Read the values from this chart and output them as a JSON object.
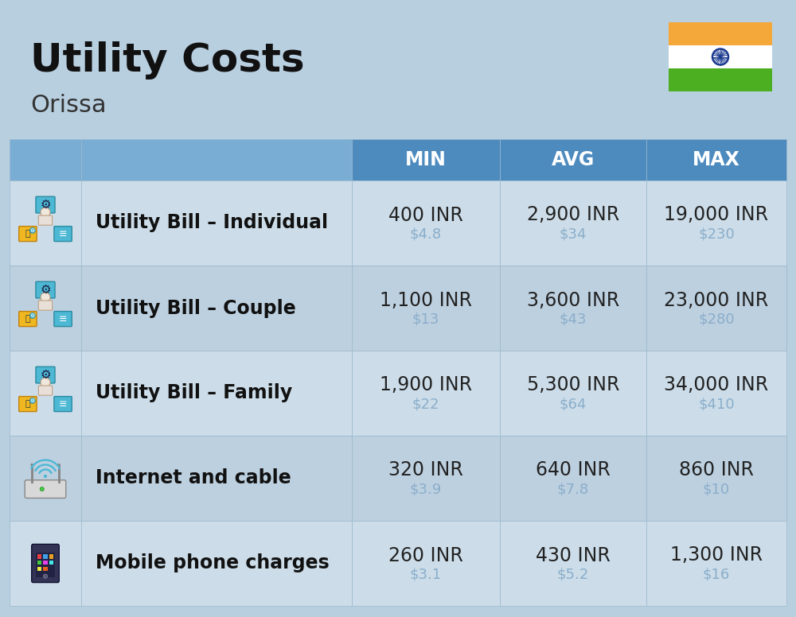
{
  "title": "Utility Costs",
  "subtitle": "Orissa",
  "background_color": "#b8cfe0",
  "header_color": "#4d8bbf",
  "header_light_color": "#7aadd4",
  "header_text_color": "#ffffff",
  "row_color_even": "#ccdde9",
  "row_color_odd": "#bdd0e0",
  "divider_color": "#9ab8cc",
  "col_headers": [
    "MIN",
    "AVG",
    "MAX"
  ],
  "rows": [
    {
      "label": "Utility Bill – Individual",
      "min_inr": "400 INR",
      "min_usd": "$4.8",
      "avg_inr": "2,900 INR",
      "avg_usd": "$34",
      "max_inr": "19,000 INR",
      "max_usd": "$230"
    },
    {
      "label": "Utility Bill – Couple",
      "min_inr": "1,100 INR",
      "min_usd": "$13",
      "avg_inr": "3,600 INR",
      "avg_usd": "$43",
      "max_inr": "23,000 INR",
      "max_usd": "$280"
    },
    {
      "label": "Utility Bill – Family",
      "min_inr": "1,900 INR",
      "min_usd": "$22",
      "avg_inr": "5,300 INR",
      "avg_usd": "$64",
      "max_inr": "34,000 INR",
      "max_usd": "$410"
    },
    {
      "label": "Internet and cable",
      "min_inr": "320 INR",
      "min_usd": "$3.9",
      "avg_inr": "640 INR",
      "avg_usd": "$7.8",
      "max_inr": "860 INR",
      "max_usd": "$10"
    },
    {
      "label": "Mobile phone charges",
      "min_inr": "260 INR",
      "min_usd": "$3.1",
      "avg_inr": "430 INR",
      "avg_usd": "$5.2",
      "max_inr": "1,300 INR",
      "max_usd": "$16"
    }
  ],
  "title_fontsize": 36,
  "subtitle_fontsize": 22,
  "header_fontsize": 17,
  "label_fontsize": 17,
  "value_fontsize": 17,
  "usd_fontsize": 13,
  "usd_color": "#8aadca",
  "flag_orange": "#F4A83A",
  "flag_white": "#FFFFFF",
  "flag_green": "#4CAF22",
  "flag_chakra": "#1a3a8f"
}
